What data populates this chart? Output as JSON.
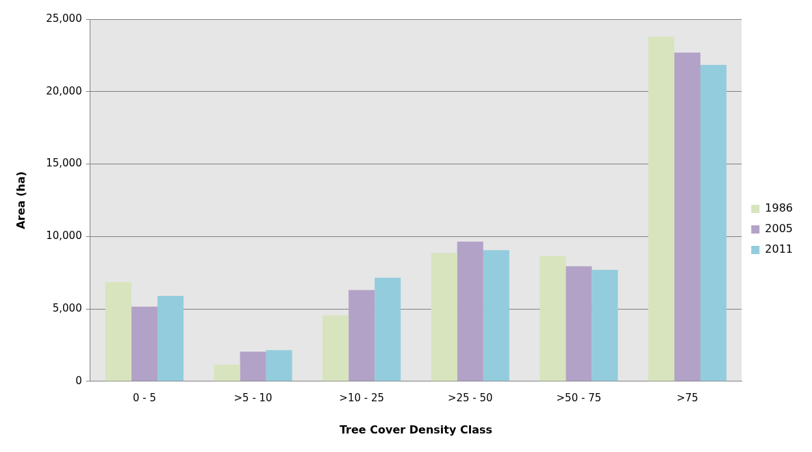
{
  "chart_data": {
    "type": "bar",
    "xlabel": "Tree Cover Density Class",
    "ylabel": "Area (ha)",
    "categories": [
      "0 - 5",
      ">5 - 10",
      ">10 - 25",
      ">25 - 50",
      ">50 - 75",
      ">75"
    ],
    "series": [
      {
        "name": "1986",
        "color": "#d7e4bd",
        "values": [
          6850,
          1150,
          4550,
          8850,
          8650,
          23800
        ]
      },
      {
        "name": "2005",
        "color": "#b3a2c7",
        "values": [
          5150,
          2050,
          6300,
          9650,
          7950,
          22700
        ]
      },
      {
        "name": "2011",
        "color": "#93cddd",
        "values": [
          5900,
          2150,
          7150,
          9050,
          7700,
          21850
        ]
      }
    ],
    "ylim": [
      0,
      25000
    ],
    "yticks": [
      {
        "value": 0,
        "label": "0"
      },
      {
        "value": 5000,
        "label": "5,000"
      },
      {
        "value": 10000,
        "label": "10,000"
      },
      {
        "value": 15000,
        "label": "15,000"
      },
      {
        "value": 20000,
        "label": "20,000"
      },
      {
        "value": 25000,
        "label": "25,000"
      }
    ],
    "grid": "y",
    "legend": "right"
  }
}
